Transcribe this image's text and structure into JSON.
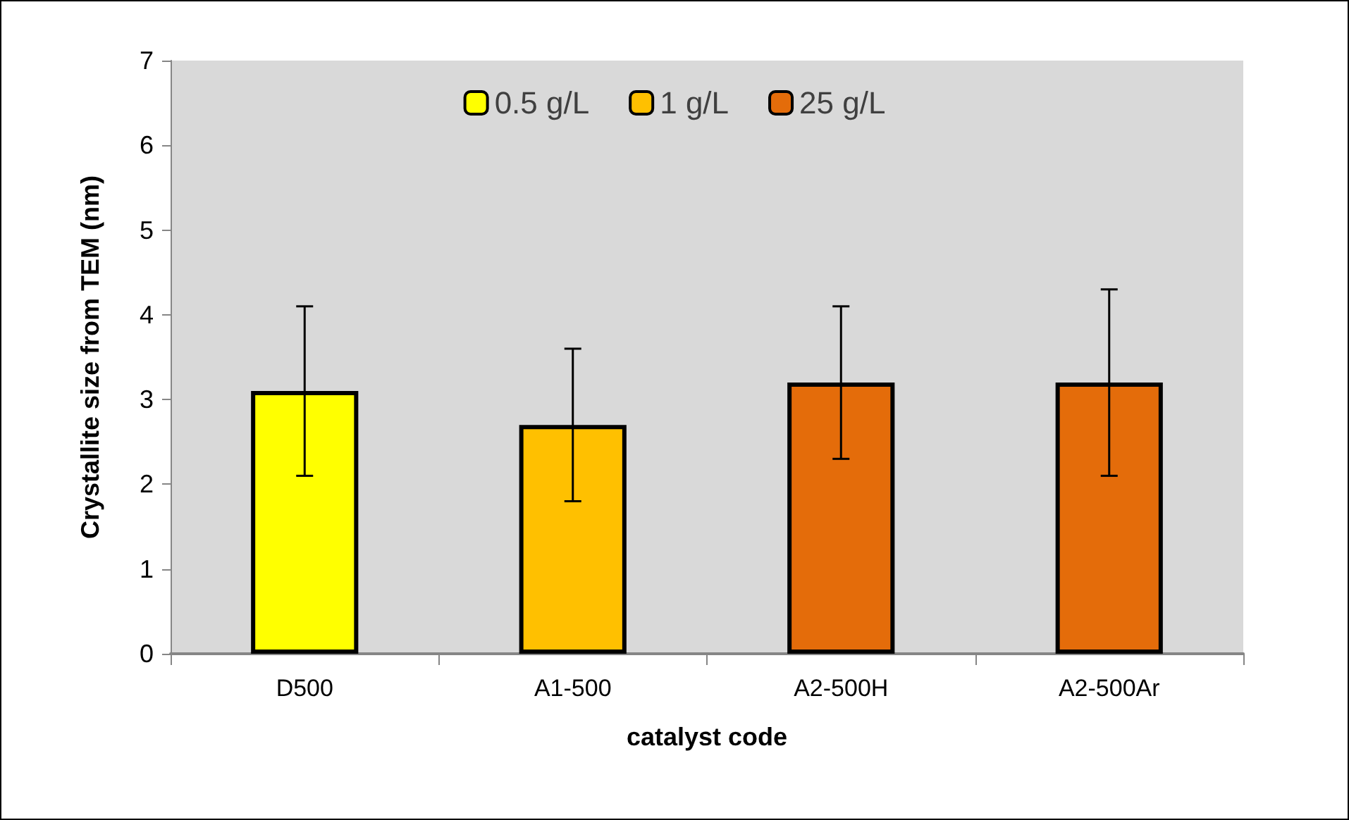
{
  "chart_data": {
    "type": "bar",
    "xlabel": "catalyst code",
    "ylabel": "Crystallite size from TEM (nm)",
    "categories": [
      "D500",
      "A1-500",
      "A2-500H",
      "A2-500Ar"
    ],
    "series": [
      {
        "name": "0.5 g/L",
        "color": "#ffff00",
        "values": [
          3.1,
          null,
          null,
          null
        ],
        "errors": [
          1.0,
          null,
          null,
          null
        ]
      },
      {
        "name": "1 g/L",
        "color": "#ffc000",
        "values": [
          null,
          2.7,
          null,
          null
        ],
        "errors": [
          null,
          0.9,
          null,
          null
        ]
      },
      {
        "name": "25 g/L",
        "color": "#e46c0a",
        "values": [
          null,
          null,
          3.2,
          3.2
        ],
        "errors": [
          null,
          null,
          0.9,
          1.1
        ]
      }
    ],
    "ylim": [
      0,
      7
    ],
    "yticks": [
      0,
      1,
      2,
      3,
      4,
      5,
      6,
      7
    ],
    "grid": false,
    "legend": "top"
  }
}
